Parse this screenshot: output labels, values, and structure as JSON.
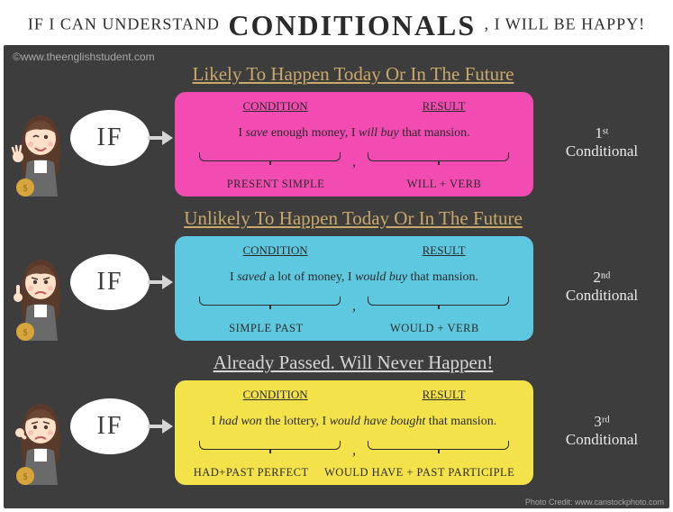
{
  "title": {
    "pre": "IF I CAN UNDERSTAND",
    "big": "CONDITIONALS",
    "post": ", I WILL BE HAPPY!"
  },
  "credits": {
    "top": "©www.theenglishstudent.com",
    "bottom": "Photo Credit: www.canstockphoto.com"
  },
  "panel_bg": "#3d3d3d",
  "if_word": "IF",
  "conditionals": [
    {
      "section_title": "Likely To Happen Today Or In The Future",
      "section_title_color": "#c9a96a",
      "pill_bg": "#f24bb2",
      "pill_text_color": "#2b2b2b",
      "headers": {
        "condition": "CONDITION",
        "result": "RESULT"
      },
      "example_html": "I <em>save</em> enough money, I <em>will buy</em> that mansion.",
      "tense_condition": "PRESENT SIMPLE",
      "tense_result": "WILL + VERB",
      "label": "1ˢᵗ Conditional",
      "label_color": "#e9e9e9",
      "character_mood": "happy"
    },
    {
      "section_title": "Unlikely To Happen Today Or In The Future",
      "section_title_color": "#c9a96a",
      "pill_bg": "#5ec8e0",
      "pill_text_color": "#2b2b2b",
      "headers": {
        "condition": "CONDITION",
        "result": "RESULT"
      },
      "example_html": "I <em>saved</em> a lot of money, I <em>would buy</em> that mansion.",
      "tense_condition": "SIMPLE  PAST",
      "tense_result": "WOULD + VERB",
      "label": "2ⁿᵈ Conditional",
      "label_color": "#e9e9e9",
      "character_mood": "doubt"
    },
    {
      "section_title": "Already Passed. Will Never Happen!",
      "section_title_color": "#d6d6d6",
      "pill_bg": "#f4e24a",
      "pill_text_color": "#2b2b2b",
      "headers": {
        "condition": "CONDITION",
        "result": "RESULT"
      },
      "example_html": "I <em>had won</em> the lottery, I <em>would have bought</em> that mansion.",
      "tense_condition": "HAD+PAST PERFECT",
      "tense_result": "WOULD HAVE + PAST PARTICIPLE",
      "label": "3ʳᵈ Conditional",
      "label_color": "#e9e9e9",
      "character_mood": "sad"
    }
  ]
}
